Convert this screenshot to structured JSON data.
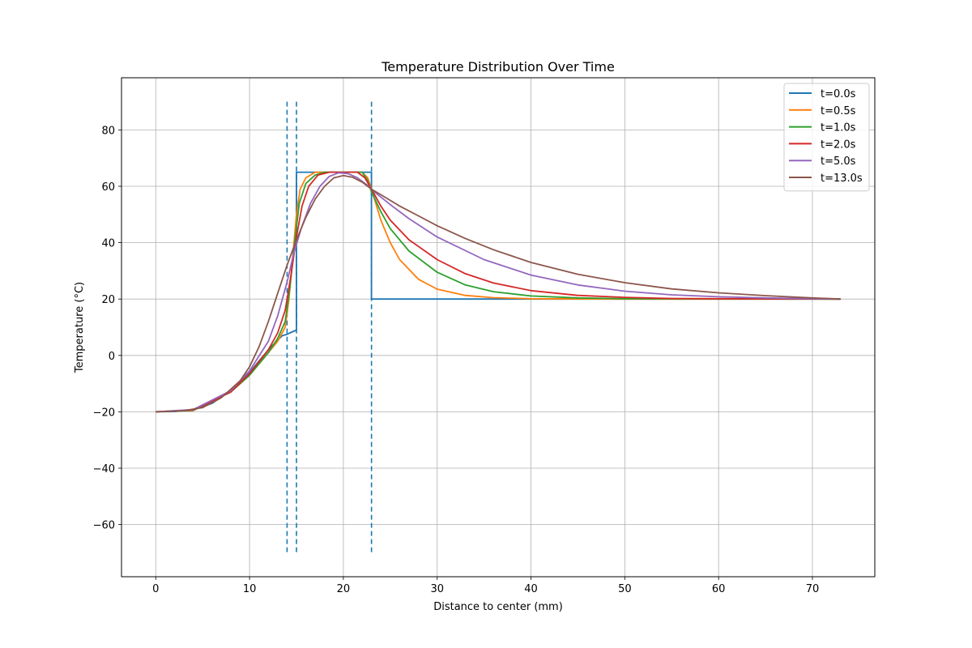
{
  "chart_data": {
    "type": "line",
    "title": "Temperature Distribution Over Time",
    "xlabel": "Distance to center (mm)",
    "ylabel": "Temperature (°C)",
    "xlim": [
      -3.65,
      76.65
    ],
    "ylim": [
      -78.5,
      98.5
    ],
    "x_ticks": [
      0,
      10,
      20,
      30,
      40,
      50,
      60,
      70
    ],
    "x_tick_labels": [
      "0",
      "10",
      "20",
      "30",
      "40",
      "50",
      "60",
      "70"
    ],
    "y_ticks": [
      -60,
      -40,
      -20,
      0,
      20,
      40,
      60,
      80
    ],
    "y_tick_labels": [
      "−60",
      "−40",
      "−20",
      "0",
      "20",
      "40",
      "60",
      "80"
    ],
    "grid": true,
    "legend_position": "top-right",
    "boundaries": {
      "x": [
        14,
        15,
        23
      ],
      "y_range": [
        -70,
        90
      ],
      "color": "#1f77b4",
      "style": "dashed"
    },
    "series": [
      {
        "name": "t=0.0s",
        "color": "#1f77b4",
        "points": [
          [
            0,
            -20
          ],
          [
            2,
            -19.9
          ],
          [
            4,
            -19.2
          ],
          [
            6,
            -17
          ],
          [
            8,
            -12.5
          ],
          [
            10,
            -6
          ],
          [
            12,
            2
          ],
          [
            13,
            5.5
          ],
          [
            13.5,
            7
          ],
          [
            14,
            7.5
          ],
          [
            14.3,
            8
          ],
          [
            15,
            9
          ],
          [
            15,
            65
          ],
          [
            23,
            65
          ],
          [
            23,
            20
          ],
          [
            73,
            20
          ]
        ]
      },
      {
        "name": "t=0.5s",
        "color": "#ff7f0e",
        "points": [
          [
            0,
            -20
          ],
          [
            4,
            -19.5
          ],
          [
            8,
            -13
          ],
          [
            10,
            -7
          ],
          [
            12,
            1
          ],
          [
            13,
            5
          ],
          [
            13.8,
            10
          ],
          [
            14.2,
            20
          ],
          [
            14.6,
            35
          ],
          [
            15,
            50
          ],
          [
            15.4,
            59
          ],
          [
            16,
            63
          ],
          [
            17,
            65
          ],
          [
            22,
            65
          ],
          [
            22.6,
            63
          ],
          [
            23,
            59
          ],
          [
            24,
            48
          ],
          [
            25,
            40
          ],
          [
            26,
            34
          ],
          [
            28,
            27
          ],
          [
            30,
            23.5
          ],
          [
            33,
            21.3
          ],
          [
            36,
            20.5
          ],
          [
            40,
            20.1
          ],
          [
            50,
            20
          ],
          [
            73,
            20
          ]
        ]
      },
      {
        "name": "t=1.0s",
        "color": "#2ca02c",
        "points": [
          [
            0,
            -20
          ],
          [
            4,
            -19.5
          ],
          [
            8,
            -13
          ],
          [
            10,
            -7
          ],
          [
            12,
            1
          ],
          [
            13,
            6
          ],
          [
            13.8,
            12
          ],
          [
            14.3,
            24
          ],
          [
            14.8,
            40
          ],
          [
            15.3,
            54
          ],
          [
            16,
            61
          ],
          [
            17,
            64
          ],
          [
            18,
            65
          ],
          [
            22,
            65
          ],
          [
            22.6,
            62
          ],
          [
            23,
            58
          ],
          [
            24,
            51
          ],
          [
            25,
            45
          ],
          [
            27,
            37
          ],
          [
            30,
            29.5
          ],
          [
            33,
            25
          ],
          [
            36,
            22.6
          ],
          [
            40,
            21.1
          ],
          [
            45,
            20.4
          ],
          [
            50,
            20.1
          ],
          [
            73,
            20
          ]
        ]
      },
      {
        "name": "t=2.0s",
        "color": "#d62728",
        "points": [
          [
            0,
            -20
          ],
          [
            4,
            -19.4
          ],
          [
            8,
            -13
          ],
          [
            10,
            -6.5
          ],
          [
            12,
            2
          ],
          [
            13,
            8
          ],
          [
            13.8,
            16
          ],
          [
            14.4,
            28
          ],
          [
            15,
            42
          ],
          [
            15.6,
            53
          ],
          [
            16.3,
            60
          ],
          [
            17.3,
            64
          ],
          [
            18.5,
            65
          ],
          [
            21.5,
            65
          ],
          [
            22.3,
            63
          ],
          [
            23,
            59
          ],
          [
            24,
            53
          ],
          [
            25,
            48
          ],
          [
            27,
            41
          ],
          [
            30,
            34
          ],
          [
            33,
            29
          ],
          [
            36,
            25.7
          ],
          [
            40,
            23
          ],
          [
            45,
            21.3
          ],
          [
            50,
            20.6
          ],
          [
            55,
            20.2
          ],
          [
            60,
            20.1
          ],
          [
            73,
            20
          ]
        ]
      },
      {
        "name": "t=5.0s",
        "color": "#9467bd",
        "points": [
          [
            0,
            -20
          ],
          [
            4,
            -19.2
          ],
          [
            8,
            -12.5
          ],
          [
            10,
            -5.5
          ],
          [
            12,
            5
          ],
          [
            13,
            14
          ],
          [
            14,
            26
          ],
          [
            14.7,
            36
          ],
          [
            15.5,
            45
          ],
          [
            16.5,
            54
          ],
          [
            17.5,
            60
          ],
          [
            18.5,
            63.5
          ],
          [
            19.5,
            64.8
          ],
          [
            20.5,
            64.5
          ],
          [
            21.5,
            63
          ],
          [
            22.5,
            60.5
          ],
          [
            23.5,
            57.5
          ],
          [
            25,
            53.5
          ],
          [
            27,
            48.5
          ],
          [
            30,
            42
          ],
          [
            35,
            34
          ],
          [
            40,
            28.5
          ],
          [
            45,
            25
          ],
          [
            50,
            22.8
          ],
          [
            55,
            21.5
          ],
          [
            60,
            20.8
          ],
          [
            65,
            20.4
          ],
          [
            70,
            20.1
          ],
          [
            73,
            20
          ]
        ]
      },
      {
        "name": "t=13.0s",
        "color": "#8c564b",
        "points": [
          [
            0,
            -20
          ],
          [
            3,
            -19.6
          ],
          [
            5,
            -18.5
          ],
          [
            7,
            -15
          ],
          [
            9,
            -9
          ],
          [
            10,
            -4
          ],
          [
            11,
            3
          ],
          [
            12,
            12
          ],
          [
            13,
            22
          ],
          [
            14,
            32
          ],
          [
            15,
            41
          ],
          [
            16,
            49
          ],
          [
            17,
            55.5
          ],
          [
            18,
            60
          ],
          [
            19,
            63
          ],
          [
            20,
            63.8
          ],
          [
            21,
            63.2
          ],
          [
            22,
            61.5
          ],
          [
            23,
            59
          ],
          [
            24.5,
            56
          ],
          [
            26,
            53
          ],
          [
            28,
            49.5
          ],
          [
            30,
            46
          ],
          [
            33,
            41.5
          ],
          [
            36,
            37.5
          ],
          [
            40,
            33
          ],
          [
            45,
            28.8
          ],
          [
            50,
            25.8
          ],
          [
            55,
            23.6
          ],
          [
            60,
            22.2
          ],
          [
            65,
            21.2
          ],
          [
            70,
            20.4
          ],
          [
            73,
            20
          ]
        ]
      }
    ]
  }
}
